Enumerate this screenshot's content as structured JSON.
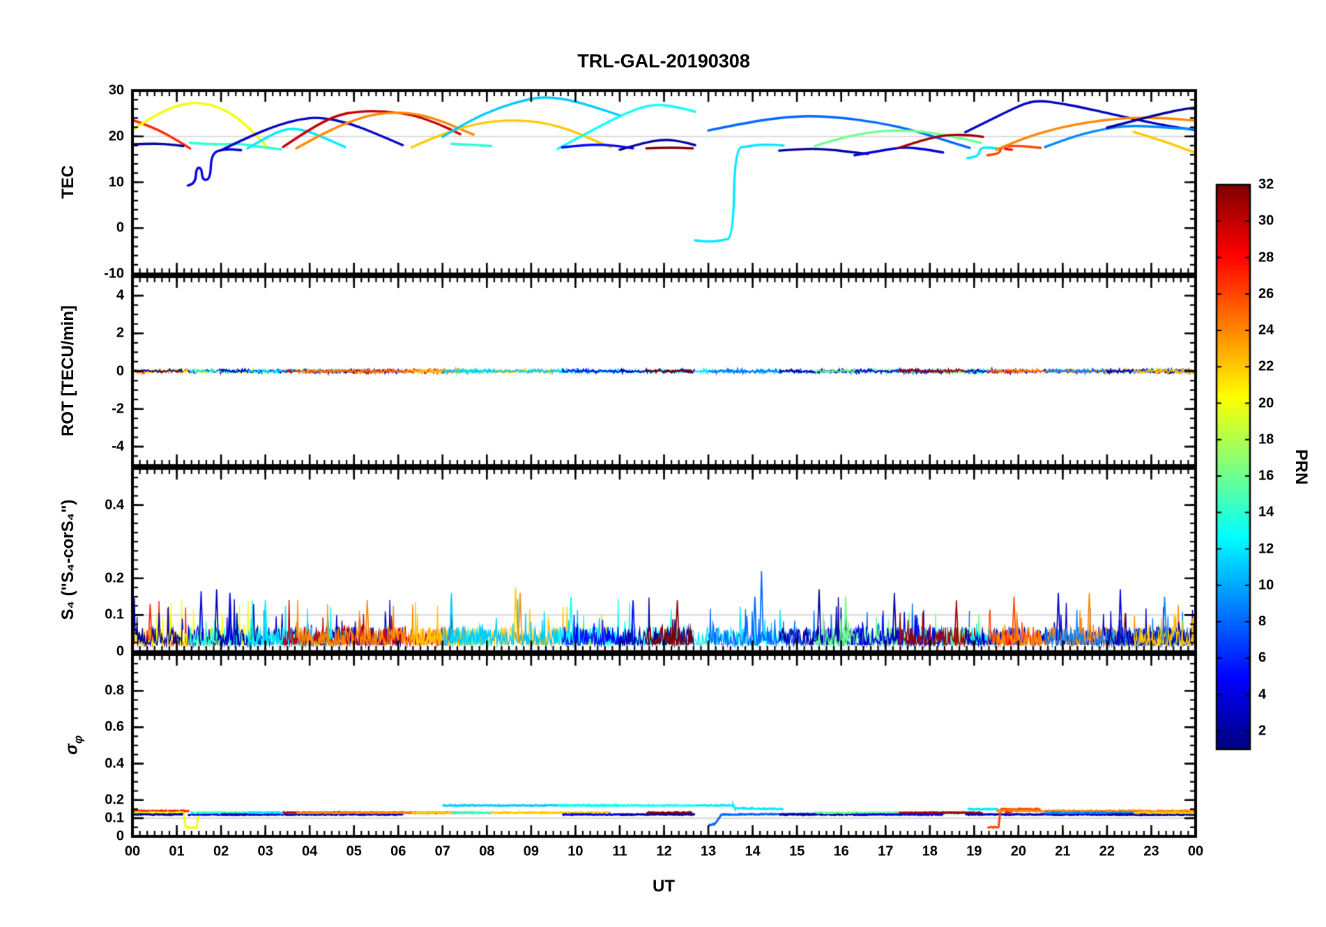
{
  "title": "TRL-GAL-20190308",
  "x_axis": {
    "label": "UT",
    "tick_labels": [
      "00",
      "01",
      "02",
      "03",
      "04",
      "05",
      "06",
      "07",
      "08",
      "09",
      "10",
      "11",
      "12",
      "13",
      "14",
      "15",
      "16",
      "17",
      "18",
      "19",
      "20",
      "21",
      "22",
      "23",
      "00"
    ]
  },
  "colorbar": {
    "label": "PRN",
    "range": [
      1,
      32
    ],
    "tick_values": [
      2,
      4,
      6,
      8,
      10,
      12,
      14,
      16,
      18,
      20,
      22,
      24,
      26,
      28,
      30,
      32
    ],
    "tick_labels": [
      "2",
      "4",
      "6",
      "8",
      "10",
      "12",
      "14",
      "16",
      "18",
      "20",
      "22",
      "24",
      "26",
      "28",
      "30",
      "32"
    ],
    "colormap": "jet"
  },
  "chart_data": {
    "type": "line",
    "ref_line_color": "#d9d9d9",
    "x": {
      "lim": [
        0,
        24
      ],
      "major_step": 1,
      "minor_step": 0.1666667
    },
    "rot_noise_amp": 0.1,
    "s4_noise": {
      "base": 0.018,
      "var": 0.05,
      "spike_prob": 0.06,
      "spike_amp": 0.09
    },
    "sigma_noise": 0.006,
    "panels": [
      {
        "name": "TEC",
        "ylabel": "TEC",
        "ylim": [
          -10,
          30
        ],
        "ytick_values": [
          30,
          20,
          10,
          0,
          -10
        ],
        "ytick_labels": [
          "30",
          "20",
          "10",
          "0",
          "-10"
        ],
        "minor_step": 2,
        "ref_line": 20
      },
      {
        "name": "ROT",
        "ylabel": "ROT [TECU/min]",
        "ylim": [
          -5,
          5
        ],
        "ytick_values": [
          4,
          2,
          0,
          -2,
          -4
        ],
        "ytick_labels": [
          "4",
          "2",
          "0",
          "-2",
          "-4"
        ],
        "minor_step": 0.5,
        "ref_line": 0
      },
      {
        "name": "S4",
        "ylabel": "S₄ (\"S₄-corS₄\")",
        "ylim": [
          0,
          0.5
        ],
        "ytick_values": [
          0.4,
          0.2,
          0.1,
          0
        ],
        "ytick_labels": [
          "0.4",
          "0.2",
          "0.1",
          "0"
        ],
        "minor_step": 0.025,
        "ref_line": 0.1
      },
      {
        "name": "SIGMA_PHI",
        "ylabel_base": "σ",
        "ylabel_sub": "φ",
        "ylim": [
          0,
          1
        ],
        "ytick_values": [
          0.8,
          0.6,
          0.4,
          0.2,
          0.1,
          0
        ],
        "ytick_labels": [
          "0.8",
          "0.6",
          "0.4",
          "0.2",
          "0.1",
          "0"
        ],
        "minor_step": 0.05,
        "ref_line": 0.1
      }
    ],
    "arcs": [
      {
        "prn": 27,
        "sig": 0.14,
        "tec": [
          [
            0.0,
            23.6
          ],
          [
            0.5,
            21.9
          ],
          [
            1.0,
            19.2
          ],
          [
            1.3,
            17.4
          ]
        ]
      },
      {
        "prn": 20,
        "sig": 0.13,
        "tec": [
          [
            0.0,
            21.4
          ],
          [
            0.5,
            24.6
          ],
          [
            1.0,
            26.8
          ],
          [
            1.5,
            27.5
          ],
          [
            2.0,
            26.3
          ],
          [
            2.5,
            23.2
          ],
          [
            3.05,
            17.6
          ]
        ],
        "sigpts": [
          [
            0,
            0.13
          ],
          [
            1.15,
            0.13
          ],
          [
            1.2,
            0.05
          ],
          [
            1.45,
            0.05
          ],
          [
            1.5,
            0.13
          ],
          [
            3.05,
            0.13
          ]
        ]
      },
      {
        "prn": 2,
        "sig": 0.12,
        "tec": [
          [
            0.0,
            18.3
          ],
          [
            0.5,
            18.5
          ],
          [
            0.9,
            18.2
          ],
          [
            1.15,
            17.9
          ]
        ]
      },
      {
        "prn": 4,
        "sig": 0.12,
        "tec": [
          [
            1.25,
            9.3
          ],
          [
            1.42,
            9.6
          ],
          [
            1.44,
            13.2
          ],
          [
            1.56,
            13.1
          ],
          [
            1.58,
            10.4
          ],
          [
            1.76,
            10.7
          ],
          [
            1.78,
            16.4
          ],
          [
            2.1,
            17.3
          ],
          [
            2.45,
            17.0
          ]
        ]
      },
      {
        "prn": 14,
        "sig": 0.13,
        "tec": [
          [
            1.3,
            18.6
          ],
          [
            1.9,
            18.2
          ],
          [
            2.4,
            18.5
          ],
          [
            2.9,
            17.7
          ],
          [
            3.35,
            17.2
          ]
        ]
      },
      {
        "prn": 3,
        "sig": 0.12,
        "tec": [
          [
            2.0,
            17.0
          ],
          [
            2.6,
            19.8
          ],
          [
            3.3,
            22.6
          ],
          [
            3.9,
            24.0
          ],
          [
            4.3,
            24.1
          ],
          [
            4.9,
            22.9
          ],
          [
            5.5,
            20.6
          ],
          [
            6.1,
            18.1
          ]
        ]
      },
      {
        "prn": 12,
        "sig": 0.13,
        "tec": [
          [
            2.6,
            17.4
          ],
          [
            3.1,
            20.2
          ],
          [
            3.5,
            21.8
          ],
          [
            3.9,
            21.4
          ],
          [
            4.4,
            19.4
          ],
          [
            4.8,
            17.7
          ]
        ]
      },
      {
        "prn": 30,
        "sig": 0.13,
        "tec": [
          [
            3.4,
            17.7
          ],
          [
            4.0,
            21.6
          ],
          [
            4.6,
            24.6
          ],
          [
            5.1,
            25.5
          ],
          [
            5.7,
            25.5
          ],
          [
            6.3,
            24.8
          ],
          [
            6.9,
            22.8
          ],
          [
            7.4,
            20.5
          ]
        ]
      },
      {
        "prn": 24,
        "sig": 0.13,
        "tec": [
          [
            3.7,
            17.4
          ],
          [
            4.4,
            21.2
          ],
          [
            5.2,
            24.3
          ],
          [
            5.8,
            25.3
          ],
          [
            6.4,
            25.0
          ],
          [
            7.0,
            23.3
          ],
          [
            7.5,
            21.2
          ],
          [
            7.7,
            20.4
          ]
        ]
      },
      {
        "prn": 22,
        "sig": 0.13,
        "tec": [
          [
            6.3,
            17.6
          ],
          [
            7.0,
            20.6
          ],
          [
            7.8,
            22.9
          ],
          [
            8.5,
            23.6
          ],
          [
            9.2,
            23.2
          ],
          [
            9.9,
            21.4
          ],
          [
            10.5,
            18.8
          ],
          [
            10.8,
            17.7
          ]
        ]
      },
      {
        "prn": 14,
        "sig": 0.13,
        "tec": [
          [
            7.2,
            18.4
          ],
          [
            7.6,
            18.2
          ],
          [
            8.1,
            17.9
          ]
        ]
      },
      {
        "prn": 11,
        "sig": 0.17,
        "tec": [
          [
            7.0,
            19.9
          ],
          [
            7.6,
            23.4
          ],
          [
            8.3,
            26.4
          ],
          [
            9.0,
            28.3
          ],
          [
            9.4,
            28.6
          ],
          [
            9.9,
            27.9
          ],
          [
            10.5,
            26.2
          ],
          [
            11.0,
            24.6
          ]
        ]
      },
      {
        "prn": 13,
        "sig": 0.17,
        "tec": [
          [
            9.6,
            17.3
          ],
          [
            10.2,
            20.4
          ],
          [
            10.9,
            24.0
          ],
          [
            11.5,
            26.5
          ],
          [
            11.9,
            27.0
          ],
          [
            12.3,
            26.4
          ],
          [
            12.7,
            25.4
          ]
        ]
      },
      {
        "prn": 5,
        "sig": 0.12,
        "tec": [
          [
            9.7,
            17.6
          ],
          [
            10.3,
            18.3
          ],
          [
            10.9,
            18.0
          ],
          [
            11.3,
            17.4
          ]
        ]
      },
      {
        "prn": 2,
        "sig": 0.12,
        "tec": [
          [
            11.0,
            17.1
          ],
          [
            11.5,
            18.5
          ],
          [
            12.0,
            19.4
          ],
          [
            12.4,
            18.9
          ],
          [
            12.7,
            18.1
          ]
        ]
      },
      {
        "prn": 32,
        "sig": 0.13,
        "tec": [
          [
            11.6,
            17.4
          ],
          [
            12.1,
            17.6
          ],
          [
            12.65,
            17.4
          ]
        ]
      },
      {
        "prn": 12,
        "sig": 0.17,
        "tec": [
          [
            12.7,
            -2.7
          ],
          [
            13.0,
            -3.0
          ],
          [
            13.3,
            -2.7
          ],
          [
            13.56,
            -2.1
          ],
          [
            13.6,
            17.4
          ],
          [
            13.9,
            17.9
          ],
          [
            14.3,
            18.3
          ],
          [
            14.7,
            18.0
          ]
        ],
        "sigpts": [
          [
            12.7,
            0.17
          ],
          [
            13.56,
            0.17
          ],
          [
            13.6,
            0.155
          ],
          [
            14.7,
            0.15
          ]
        ]
      },
      {
        "prn": 8,
        "sig": 0.13,
        "tec": [
          [
            13.0,
            21.3
          ],
          [
            13.8,
            22.9
          ],
          [
            14.6,
            24.1
          ],
          [
            15.3,
            24.5
          ],
          [
            16.0,
            24.1
          ],
          [
            16.8,
            23.1
          ],
          [
            17.6,
            21.4
          ],
          [
            18.3,
            19.3
          ],
          [
            18.9,
            17.5
          ]
        ],
        "sigpts": [
          [
            13.0,
            0.06
          ],
          [
            13.15,
            0.07
          ],
          [
            13.3,
            0.12
          ],
          [
            18.9,
            0.13
          ]
        ]
      },
      {
        "prn": 2,
        "sig": 0.12,
        "tec": [
          [
            14.6,
            16.9
          ],
          [
            15.2,
            17.4
          ],
          [
            15.8,
            17.1
          ],
          [
            16.2,
            16.6
          ],
          [
            16.6,
            16.2
          ]
        ]
      },
      {
        "prn": 16,
        "sig": 0.13,
        "tec": [
          [
            15.4,
            17.9
          ],
          [
            16.0,
            19.7
          ],
          [
            16.7,
            21.0
          ],
          [
            17.3,
            21.4
          ],
          [
            17.9,
            21.0
          ],
          [
            18.4,
            20.2
          ],
          [
            18.9,
            19.2
          ],
          [
            19.15,
            18.6
          ]
        ]
      },
      {
        "prn": 4,
        "sig": 0.12,
        "tec": [
          [
            16.3,
            15.9
          ],
          [
            16.9,
            16.9
          ],
          [
            17.4,
            17.7
          ],
          [
            17.9,
            17.2
          ],
          [
            18.3,
            16.5
          ]
        ]
      },
      {
        "prn": 31,
        "sig": 0.13,
        "tec": [
          [
            17.3,
            17.5
          ],
          [
            17.9,
            19.4
          ],
          [
            18.4,
            20.4
          ],
          [
            18.9,
            20.3
          ],
          [
            19.2,
            19.9
          ]
        ]
      },
      {
        "prn": 12,
        "sig": 0.15,
        "tec": [
          [
            18.85,
            15.3
          ],
          [
            19.1,
            15.5
          ],
          [
            19.13,
            17.5
          ],
          [
            19.35,
            17.6
          ],
          [
            19.55,
            17.3
          ]
        ]
      },
      {
        "prn": 3,
        "sig": 0.12,
        "tec": [
          [
            18.8,
            20.9
          ],
          [
            19.3,
            23.3
          ],
          [
            19.8,
            25.7
          ],
          [
            20.2,
            27.4
          ],
          [
            20.5,
            27.8
          ],
          [
            20.9,
            27.3
          ],
          [
            21.4,
            26.4
          ],
          [
            22.0,
            25.1
          ],
          [
            22.7,
            23.6
          ],
          [
            23.4,
            22.2
          ],
          [
            24.0,
            21.4
          ]
        ]
      },
      {
        "prn": 26,
        "sig": 0.13,
        "tec": [
          [
            19.3,
            15.9
          ],
          [
            19.58,
            16.1
          ],
          [
            19.6,
            17.8
          ],
          [
            20.0,
            18.0
          ],
          [
            20.5,
            17.5
          ]
        ],
        "sigpts": [
          [
            19.3,
            0.05
          ],
          [
            19.55,
            0.05
          ],
          [
            19.6,
            0.15
          ],
          [
            20.5,
            0.15
          ]
        ]
      },
      {
        "prn": 24,
        "sig": 0.14,
        "tec": [
          [
            19.5,
            17.1
          ],
          [
            20.1,
            19.6
          ],
          [
            20.9,
            21.9
          ],
          [
            21.7,
            23.3
          ],
          [
            22.4,
            24.0
          ],
          [
            23.0,
            24.1
          ],
          [
            23.6,
            23.8
          ],
          [
            24.0,
            23.4
          ]
        ]
      },
      {
        "prn": 9,
        "sig": 0.13,
        "tec": [
          [
            20.6,
            17.7
          ],
          [
            21.2,
            19.9
          ],
          [
            21.9,
            21.6
          ],
          [
            22.5,
            22.4
          ],
          [
            23.1,
            22.1
          ],
          [
            23.6,
            21.8
          ],
          [
            24.0,
            21.6
          ]
        ]
      },
      {
        "prn": 2,
        "sig": 0.12,
        "tec": [
          [
            22.0,
            21.9
          ],
          [
            22.6,
            23.4
          ],
          [
            23.2,
            24.9
          ],
          [
            23.7,
            25.9
          ],
          [
            24.0,
            26.3
          ]
        ]
      },
      {
        "prn": 22,
        "sig": 0.13,
        "tec": [
          [
            22.6,
            21.0
          ],
          [
            23.2,
            19.2
          ],
          [
            23.7,
            17.5
          ],
          [
            24.0,
            16.4
          ]
        ]
      },
      {
        "prn": 28,
        "sig": 0.13,
        "tec": [
          [
            19.7,
            17.3
          ],
          [
            19.85,
            17.1
          ]
        ]
      }
    ],
    "s4_spikes": [
      {
        "t": 0.4,
        "v": 0.13,
        "prn": 27
      },
      {
        "t": 1.55,
        "v": 0.165,
        "prn": 4
      },
      {
        "t": 1.9,
        "v": 0.17,
        "prn": 2
      },
      {
        "t": 2.2,
        "v": 0.16,
        "prn": 4
      },
      {
        "t": 3.0,
        "v": 0.14,
        "prn": 12
      },
      {
        "t": 5.3,
        "v": 0.14,
        "prn": 24
      },
      {
        "t": 7.2,
        "v": 0.16,
        "prn": 11
      },
      {
        "t": 8.65,
        "v": 0.175,
        "prn": 22
      },
      {
        "t": 8.75,
        "v": 0.16,
        "prn": 24
      },
      {
        "t": 9.9,
        "v": 0.15,
        "prn": 13
      },
      {
        "t": 11.3,
        "v": 0.14,
        "prn": 5
      },
      {
        "t": 12.3,
        "v": 0.14,
        "prn": 32
      },
      {
        "t": 14.05,
        "v": 0.15,
        "prn": 8
      },
      {
        "t": 14.2,
        "v": 0.22,
        "prn": 8
      },
      {
        "t": 15.5,
        "v": 0.17,
        "prn": 2
      },
      {
        "t": 16.1,
        "v": 0.15,
        "prn": 16
      },
      {
        "t": 17.2,
        "v": 0.16,
        "prn": 2
      },
      {
        "t": 18.6,
        "v": 0.14,
        "prn": 31
      },
      {
        "t": 19.9,
        "v": 0.15,
        "prn": 26
      },
      {
        "t": 20.9,
        "v": 0.16,
        "prn": 3
      },
      {
        "t": 21.6,
        "v": 0.16,
        "prn": 24
      },
      {
        "t": 22.3,
        "v": 0.17,
        "prn": 4
      },
      {
        "t": 23.3,
        "v": 0.15,
        "prn": 9
      }
    ]
  }
}
